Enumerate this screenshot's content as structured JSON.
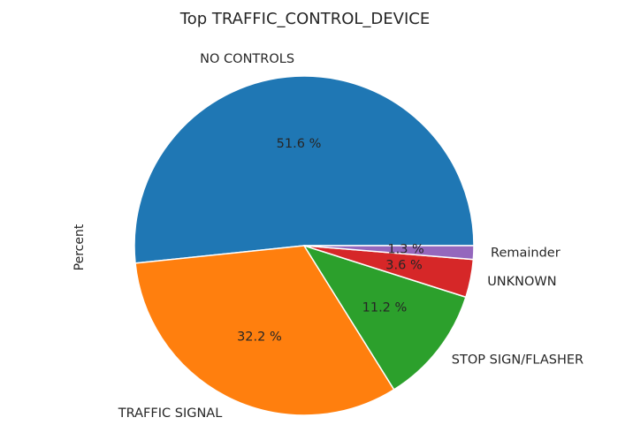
{
  "chart_data": {
    "type": "pie",
    "title": "Top TRAFFIC_CONTROL_DEVICE",
    "ylabel": "Percent",
    "start_angle_deg": 0,
    "direction": "counterclockwise",
    "slices": [
      {
        "label": "NO CONTROLS",
        "value": 51.6,
        "pct_text": "51.6 %",
        "color": "#1f77b4"
      },
      {
        "label": "TRAFFIC SIGNAL",
        "value": 32.2,
        "pct_text": "32.2 %",
        "color": "#ff7f0e"
      },
      {
        "label": "STOP SIGN/FLASHER",
        "value": 11.2,
        "pct_text": "11.2 %",
        "color": "#2ca02c"
      },
      {
        "label": "UNKNOWN",
        "value": 3.6,
        "pct_text": "3.6 %",
        "color": "#d62728"
      },
      {
        "label": "Remainder",
        "value": 1.3,
        "pct_text": "1.3 %",
        "color": "#9467bd"
      }
    ]
  }
}
